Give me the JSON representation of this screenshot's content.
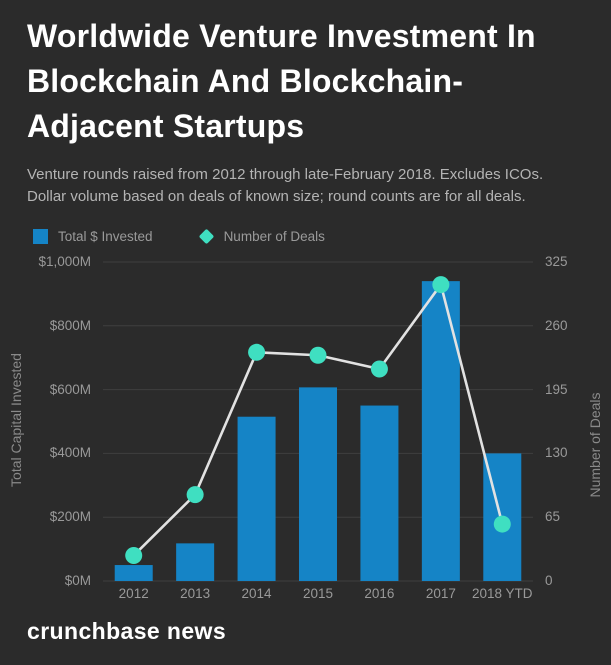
{
  "header": {
    "title_lines": [
      "Worldwide Venture Investment In",
      "Blockchain And Blockchain-",
      "Adjacent Startups"
    ],
    "subtitle_lines": [
      "Venture rounds raised from 2012 through late-February 2018. Excludes ICOs.",
      "Dollar volume based on deals of known size; round counts are for all deals."
    ]
  },
  "legend": {
    "items": [
      {
        "label": "Total $ Invested",
        "marker": "square",
        "color": "#1584c6"
      },
      {
        "label": "Number of Deals",
        "marker": "diamond",
        "color": "#3fdfc1"
      }
    ]
  },
  "chart_data": {
    "type": "bar+line",
    "categories": [
      "2012",
      "2013",
      "2014",
      "2015",
      "2016",
      "2017",
      "2018 YTD"
    ],
    "series": [
      {
        "name": "Total $ Invested",
        "type": "bar",
        "axis": "left",
        "color": "#1584c6",
        "values": [
          50,
          118,
          515,
          607,
          550,
          940,
          400
        ]
      },
      {
        "name": "Number of Deals",
        "type": "line",
        "axis": "right",
        "marker_color": "#3fdfc1",
        "line_color": "#e2e2e2",
        "values": [
          26,
          88,
          233,
          230,
          216,
          302,
          58
        ]
      }
    ],
    "left_axis": {
      "label": "Total Capital Invested",
      "ticks": [
        "$1,000M",
        "$800M",
        "$600M",
        "$400M",
        "$200M",
        "$0M"
      ],
      "min": 0,
      "max": 1000
    },
    "right_axis": {
      "label": "Number of Deals",
      "ticks": [
        "325",
        "260",
        "195",
        "130",
        "65",
        "0"
      ],
      "min": 0,
      "max": 325
    },
    "grid": true,
    "grid_color": "#3f3f3f",
    "legend_position": "top-left"
  },
  "colors": {
    "background": "#2b2b2b",
    "title": "#ffffff",
    "subtitle": "#b4b4b4",
    "axis_text": "#999999",
    "axis_title": "#8a8a8a"
  },
  "footer": {
    "brand": "crunchbase news"
  }
}
